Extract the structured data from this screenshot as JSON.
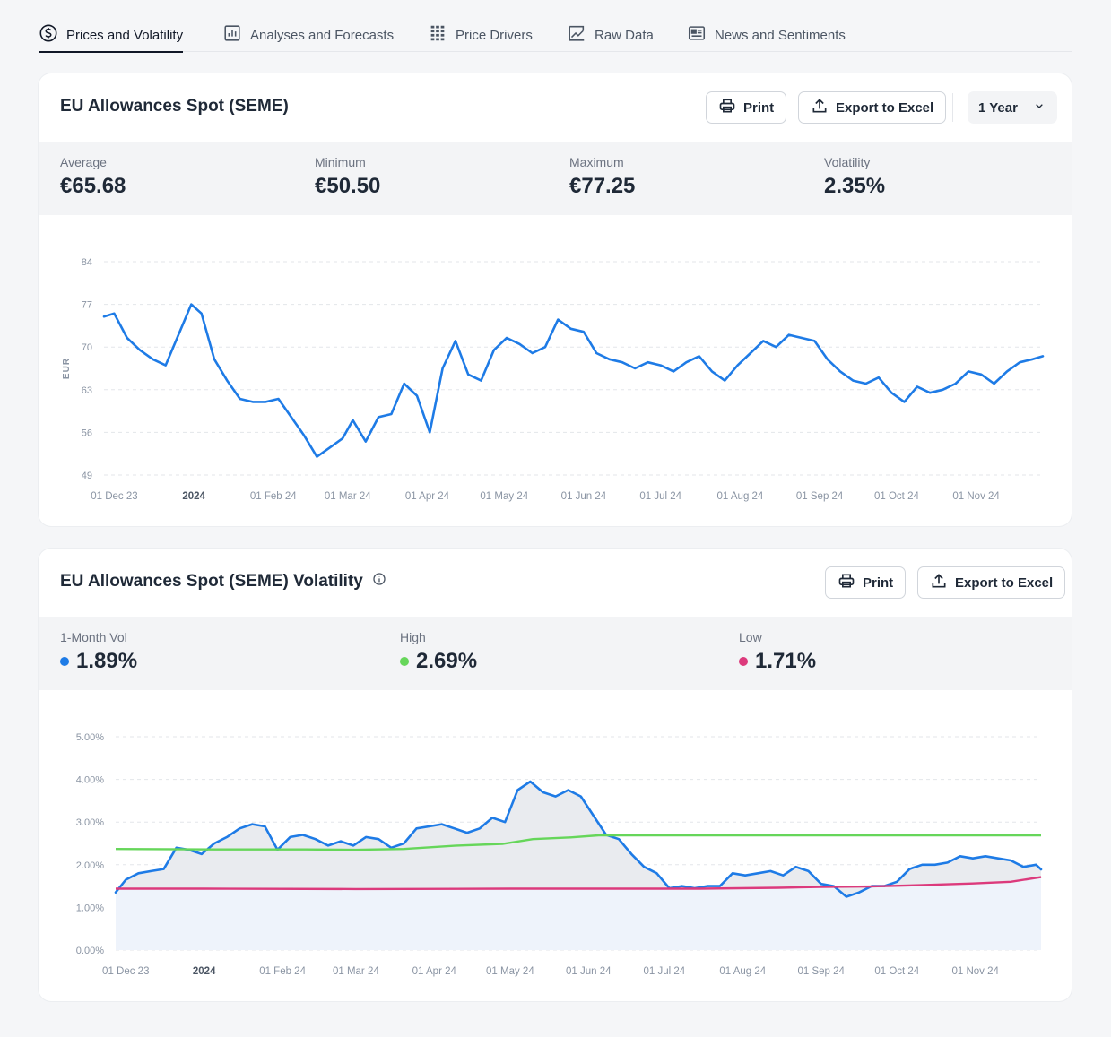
{
  "tabs": [
    {
      "label": "Prices and Volatility",
      "icon": "dollar-circle-icon",
      "active": true
    },
    {
      "label": "Analyses and Forecasts",
      "icon": "bar-chart-icon",
      "active": false
    },
    {
      "label": "Price Drivers",
      "icon": "grid-icon",
      "active": false
    },
    {
      "label": "Raw Data",
      "icon": "trend-chart-icon",
      "active": false
    },
    {
      "label": "News and Sentiments",
      "icon": "newspaper-icon",
      "active": false
    }
  ],
  "price_card": {
    "title": "EU Allowances Spot (SEME)",
    "print_label": "Print",
    "export_label": "Export to Excel",
    "range_value": "1 Year",
    "stats": [
      {
        "label": "Average",
        "value": "€65.68"
      },
      {
        "label": "Minimum",
        "value": "€50.50"
      },
      {
        "label": "Maximum",
        "value": "€77.25"
      },
      {
        "label": "Volatility",
        "value": "2.35%"
      }
    ]
  },
  "vol_card": {
    "title": "EU Allowances Spot (SEME) Volatility",
    "print_label": "Print",
    "export_label": "Export to Excel",
    "stats": [
      {
        "label": "1-Month Vol",
        "value": "1.89%",
        "color": "#1e7be6"
      },
      {
        "label": "High",
        "value": "2.69%",
        "color": "#66d65a"
      },
      {
        "label": "Low",
        "value": "1.71%",
        "color": "#dc3a7c"
      }
    ]
  },
  "chart_data": [
    {
      "type": "line",
      "title": "",
      "xlabel": "",
      "ylabel": "EUR",
      "ylim": [
        49,
        84
      ],
      "yticks": [
        49,
        56,
        63,
        70,
        77,
        84
      ],
      "xticks": [
        "01 Dec 23",
        "2024",
        "01 Feb 24",
        "01 Mar 24",
        "01 Apr 24",
        "01 May 24",
        "01 Jun 24",
        "01 Jul 24",
        "01 Aug 24",
        "01 Sep 24",
        "01 Oct 24",
        "01 Nov 24"
      ],
      "xtick_dates": [
        "2023-12-01",
        "2024-01-01",
        "2024-02-01",
        "2024-03-01",
        "2024-04-01",
        "2024-05-01",
        "2024-06-01",
        "2024-07-01",
        "2024-08-01",
        "2024-09-01",
        "2024-10-01",
        "2024-11-01"
      ],
      "xlim": [
        "2023-11-27",
        "2024-11-27"
      ],
      "grid": true,
      "color": "#1e7be6",
      "series": [
        {
          "x": [
            "2023-11-27",
            "2023-12-01",
            "2023-12-06",
            "2023-12-11",
            "2023-12-16",
            "2023-12-21",
            "2023-12-26",
            "2023-12-31",
            "2024-01-04",
            "2024-01-09",
            "2024-01-14",
            "2024-01-19",
            "2024-01-24",
            "2024-01-29",
            "2024-02-03",
            "2024-02-08",
            "2024-02-13",
            "2024-02-18",
            "2024-02-23",
            "2024-02-28",
            "2024-03-03",
            "2024-03-08",
            "2024-03-13",
            "2024-03-18",
            "2024-03-23",
            "2024-03-28",
            "2024-04-02",
            "2024-04-07",
            "2024-04-12",
            "2024-04-17",
            "2024-04-22",
            "2024-04-27",
            "2024-05-02",
            "2024-05-07",
            "2024-05-12",
            "2024-05-17",
            "2024-05-22",
            "2024-05-27",
            "2024-06-01",
            "2024-06-06",
            "2024-06-11",
            "2024-06-16",
            "2024-06-21",
            "2024-06-26",
            "2024-07-01",
            "2024-07-06",
            "2024-07-11",
            "2024-07-16",
            "2024-07-21",
            "2024-07-26",
            "2024-07-31",
            "2024-08-05",
            "2024-08-10",
            "2024-08-15",
            "2024-08-20",
            "2024-08-25",
            "2024-08-30",
            "2024-09-04",
            "2024-09-09",
            "2024-09-14",
            "2024-09-19",
            "2024-09-24",
            "2024-09-29",
            "2024-10-04",
            "2024-10-09",
            "2024-10-14",
            "2024-10-19",
            "2024-10-24",
            "2024-10-29",
            "2024-11-03",
            "2024-11-08",
            "2024-11-13",
            "2024-11-18",
            "2024-11-23",
            "2024-11-27"
          ],
          "y": [
            75.0,
            75.5,
            71.5,
            69.5,
            68.0,
            67.0,
            72.0,
            77.0,
            75.5,
            68.0,
            64.5,
            61.5,
            61.0,
            61.0,
            61.5,
            58.5,
            55.5,
            52.0,
            53.5,
            55.0,
            58.0,
            54.5,
            58.5,
            59.0,
            64.0,
            62.0,
            56.0,
            66.5,
            71.0,
            65.5,
            64.5,
            69.5,
            71.5,
            70.5,
            69.0,
            70.0,
            74.5,
            73.0,
            72.5,
            69.0,
            68.0,
            67.5,
            66.5,
            67.5,
            67.0,
            66.0,
            67.5,
            68.5,
            66.0,
            64.5,
            67.0,
            69.0,
            71.0,
            70.0,
            72.0,
            71.5,
            71.0,
            68.0,
            66.0,
            64.5,
            64.0,
            65.0,
            62.5,
            61.0,
            63.5,
            62.5,
            63.0,
            64.0,
            66.0,
            65.5,
            64.0,
            66.0,
            67.5,
            68.0,
            68.5
          ]
        }
      ]
    },
    {
      "type": "area",
      "title": "",
      "xlabel": "",
      "ylabel": "",
      "ylim": [
        0,
        5
      ],
      "yticks": [
        "0.00%",
        "1.00%",
        "2.00%",
        "3.00%",
        "4.00%",
        "5.00%"
      ],
      "ytick_values": [
        0,
        1,
        2,
        3,
        4,
        5
      ],
      "xticks": [
        "01 Dec 23",
        "2024",
        "01 Feb 24",
        "01 Mar 24",
        "01 Apr 24",
        "01 May 24",
        "01 Jun 24",
        "01 Jul 24",
        "01 Aug 24",
        "01 Sep 24",
        "01 Oct 24",
        "01 Nov 24"
      ],
      "xtick_dates": [
        "2023-12-01",
        "2024-01-01",
        "2024-02-01",
        "2024-03-01",
        "2024-04-01",
        "2024-05-01",
        "2024-06-01",
        "2024-07-01",
        "2024-08-01",
        "2024-09-01",
        "2024-10-01",
        "2024-11-01"
      ],
      "xlim": [
        "2023-11-27",
        "2024-11-27"
      ],
      "grid": true,
      "series": [
        {
          "name": "1-Month Vol",
          "color": "#1e7be6",
          "x": [
            "2023-11-27",
            "2023-12-01",
            "2023-12-06",
            "2023-12-11",
            "2023-12-16",
            "2023-12-21",
            "2023-12-26",
            "2023-12-31",
            "2024-01-05",
            "2024-01-10",
            "2024-01-15",
            "2024-01-20",
            "2024-01-25",
            "2024-01-30",
            "2024-02-04",
            "2024-02-09",
            "2024-02-14",
            "2024-02-19",
            "2024-02-24",
            "2024-02-29",
            "2024-03-05",
            "2024-03-10",
            "2024-03-15",
            "2024-03-20",
            "2024-03-25",
            "2024-03-30",
            "2024-04-04",
            "2024-04-09",
            "2024-04-14",
            "2024-04-19",
            "2024-04-24",
            "2024-04-29",
            "2024-05-04",
            "2024-05-09",
            "2024-05-14",
            "2024-05-19",
            "2024-05-24",
            "2024-05-29",
            "2024-06-03",
            "2024-06-08",
            "2024-06-13",
            "2024-06-18",
            "2024-06-23",
            "2024-06-28",
            "2024-07-03",
            "2024-07-08",
            "2024-07-13",
            "2024-07-18",
            "2024-07-23",
            "2024-07-28",
            "2024-08-02",
            "2024-08-07",
            "2024-08-12",
            "2024-08-17",
            "2024-08-22",
            "2024-08-27",
            "2024-09-01",
            "2024-09-06",
            "2024-09-11",
            "2024-09-16",
            "2024-09-21",
            "2024-09-26",
            "2024-10-01",
            "2024-10-06",
            "2024-10-11",
            "2024-10-16",
            "2024-10-21",
            "2024-10-26",
            "2024-10-31",
            "2024-11-05",
            "2024-11-10",
            "2024-11-15",
            "2024-11-20",
            "2024-11-25",
            "2024-11-27"
          ],
          "y": [
            1.35,
            1.65,
            1.8,
            1.85,
            1.9,
            2.4,
            2.35,
            2.25,
            2.5,
            2.65,
            2.85,
            2.95,
            2.9,
            2.35,
            2.65,
            2.7,
            2.6,
            2.45,
            2.55,
            2.45,
            2.65,
            2.6,
            2.4,
            2.5,
            2.85,
            2.9,
            2.95,
            2.85,
            2.75,
            2.85,
            3.1,
            3.0,
            3.75,
            3.95,
            3.7,
            3.6,
            3.75,
            3.6,
            3.15,
            2.7,
            2.6,
            2.25,
            1.95,
            1.8,
            1.45,
            1.5,
            1.45,
            1.5,
            1.5,
            1.8,
            1.75,
            1.8,
            1.85,
            1.75,
            1.95,
            1.85,
            1.55,
            1.5,
            1.25,
            1.35,
            1.5,
            1.5,
            1.6,
            1.9,
            2.0,
            2.0,
            2.05,
            2.2,
            2.15,
            2.2,
            2.15,
            2.1,
            1.95,
            2.0,
            1.89
          ]
        },
        {
          "name": "High",
          "color": "#66d65a",
          "x": [
            "2023-11-27",
            "2024-01-05",
            "2024-02-10",
            "2024-03-01",
            "2024-03-20",
            "2024-04-10",
            "2024-04-28",
            "2024-05-10",
            "2024-05-25",
            "2024-06-05",
            "2024-07-01",
            "2024-11-27"
          ],
          "y": [
            2.37,
            2.36,
            2.36,
            2.35,
            2.37,
            2.45,
            2.49,
            2.6,
            2.64,
            2.69,
            2.69,
            2.69
          ]
        },
        {
          "name": "Low",
          "color": "#dc3a7c",
          "x": [
            "2023-11-27",
            "2024-01-01",
            "2024-03-01",
            "2024-05-01",
            "2024-06-15",
            "2024-07-15",
            "2024-08-15",
            "2024-09-01",
            "2024-09-20",
            "2024-10-10",
            "2024-10-31",
            "2024-11-15",
            "2024-11-27"
          ],
          "y": [
            1.44,
            1.44,
            1.43,
            1.44,
            1.44,
            1.44,
            1.46,
            1.48,
            1.49,
            1.52,
            1.56,
            1.6,
            1.71
          ]
        }
      ]
    }
  ]
}
